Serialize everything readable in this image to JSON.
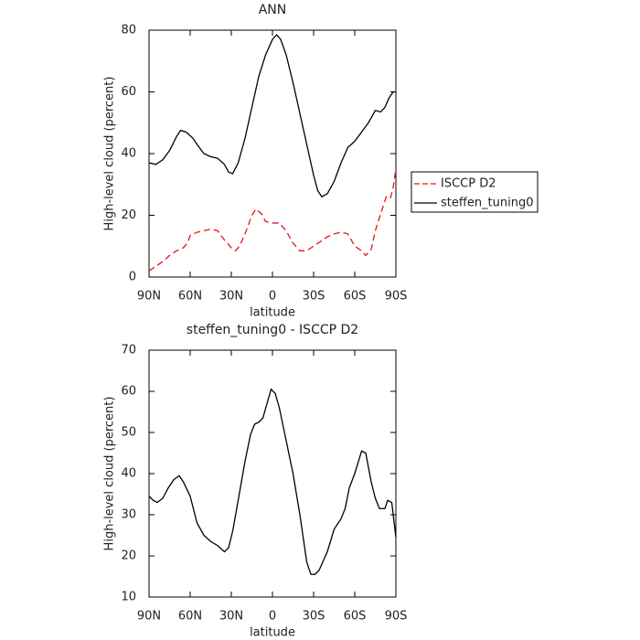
{
  "chart_data": [
    {
      "type": "line",
      "title": "ANN",
      "xlabel": "latitude",
      "ylabel": "High-level cloud (percent)",
      "xlim": [
        90,
        -90
      ],
      "ylim": [
        0,
        80
      ],
      "xticks": [
        {
          "value": 90,
          "label": "90N"
        },
        {
          "value": 60,
          "label": "60N"
        },
        {
          "value": 30,
          "label": "30N"
        },
        0,
        {
          "value": -30,
          "label": "30S"
        },
        {
          "value": -60,
          "label": "60S"
        },
        {
          "value": -90,
          "label": "90S"
        }
      ],
      "yticks": [
        0,
        20,
        40,
        60,
        80
      ],
      "legend": "right",
      "series": [
        {
          "name": "ISCCP D2",
          "color": "#e8141c",
          "linestyle": "dashed",
          "x": [
            90,
            85,
            80,
            75,
            70,
            65,
            62,
            60,
            55,
            50,
            45,
            40,
            35,
            30,
            27,
            24,
            20,
            15,
            12,
            8,
            5,
            0,
            -5,
            -10,
            -15,
            -20,
            -25,
            -30,
            -35,
            -40,
            -45,
            -50,
            -55,
            -60,
            -65,
            -68,
            -72,
            -75,
            -80,
            -83,
            -86,
            -88,
            -90
          ],
          "values": [
            2,
            3.5,
            5,
            7,
            8.5,
            9.5,
            11,
            13.5,
            14.5,
            15,
            15.5,
            15,
            12,
            9.5,
            8.5,
            10,
            14,
            20,
            22,
            20.5,
            18,
            17.5,
            17.5,
            15,
            11,
            8.5,
            8.5,
            10,
            11.5,
            13,
            14,
            14.5,
            14,
            10,
            8.5,
            7,
            9,
            15,
            22,
            26,
            25.5,
            29,
            35
          ]
        },
        {
          "name": "steffen_tuning0",
          "color": "#000000",
          "linestyle": "solid",
          "x": [
            90,
            85,
            80,
            75,
            70,
            67,
            63,
            58,
            55,
            50,
            45,
            40,
            35,
            32,
            29,
            25,
            20,
            15,
            10,
            5,
            0,
            -3,
            -6,
            -10,
            -15,
            -20,
            -25,
            -30,
            -33,
            -36,
            -40,
            -45,
            -50,
            -55,
            -60,
            -65,
            -70,
            -75,
            -79,
            -82,
            -85,
            -88,
            -90
          ],
          "values": [
            37,
            36.5,
            38,
            41,
            45.5,
            47.5,
            47,
            45,
            43,
            40,
            39,
            38.5,
            36.5,
            34,
            33.5,
            37,
            45,
            55,
            65,
            72,
            77,
            78.5,
            77,
            72,
            63,
            53,
            43,
            33,
            28,
            26,
            27,
            31,
            37,
            42,
            44,
            47,
            50,
            54,
            53.5,
            55,
            58,
            60,
            60
          ]
        }
      ]
    },
    {
      "type": "line",
      "title": "steffen_tuning0 - ISCCP D2",
      "xlabel": "latitude",
      "ylabel": "High-level cloud (percent)",
      "xlim": [
        90,
        -90
      ],
      "ylim": [
        10,
        70
      ],
      "xticks": [
        {
          "value": 90,
          "label": "90N"
        },
        {
          "value": 60,
          "label": "60N"
        },
        {
          "value": 30,
          "label": "30N"
        },
        0,
        {
          "value": -30,
          "label": "30S"
        },
        {
          "value": -60,
          "label": "60S"
        },
        {
          "value": -90,
          "label": "90S"
        }
      ],
      "yticks": [
        10,
        20,
        30,
        40,
        50,
        60,
        70
      ],
      "series": [
        {
          "color": "#000000",
          "linestyle": "solid",
          "x": [
            90,
            87,
            84,
            80,
            76,
            72,
            68,
            65,
            60,
            55,
            50,
            45,
            40,
            35,
            32,
            29,
            25,
            20,
            16,
            13,
            10,
            7,
            4,
            1,
            -2,
            -5,
            -10,
            -15,
            -20,
            -25,
            -28,
            -31,
            -34,
            -40,
            -45,
            -50,
            -53,
            -56,
            -60,
            -65,
            -68,
            -72,
            -75,
            -78,
            -82,
            -84,
            -87,
            -90
          ],
          "values": [
            34.5,
            33.5,
            33,
            34,
            36.5,
            38.5,
            39.5,
            38,
            34.5,
            28,
            25,
            23.5,
            22.5,
            21,
            22,
            26,
            33.5,
            43,
            49.5,
            52,
            52.5,
            53.5,
            57,
            60.5,
            59.5,
            56,
            48,
            40,
            30,
            18.5,
            15.5,
            15.5,
            16.5,
            21,
            26.5,
            29,
            31.5,
            36.5,
            40,
            45.5,
            45,
            38,
            34,
            31.5,
            31.5,
            33.5,
            33,
            24.5
          ]
        }
      ]
    }
  ]
}
